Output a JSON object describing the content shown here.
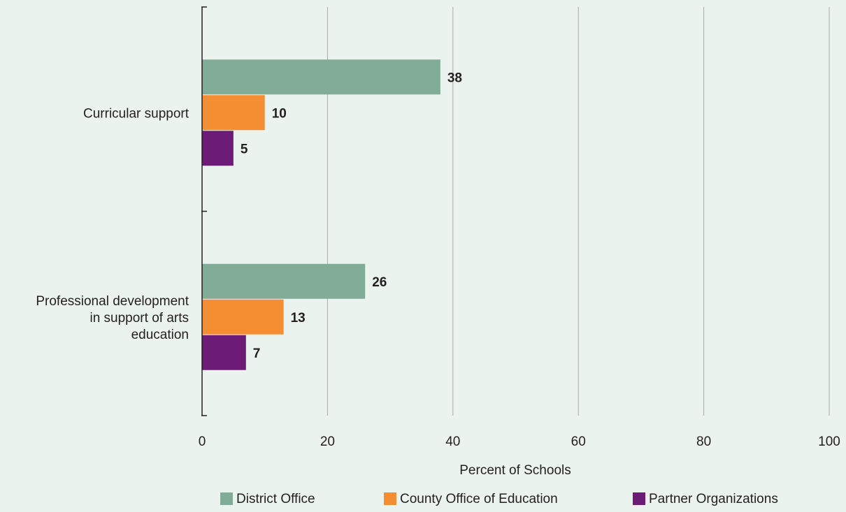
{
  "chart_data": {
    "type": "bar",
    "orientation": "horizontal",
    "categories": [
      [
        "Curricular support"
      ],
      [
        "Professional development",
        "in support of arts",
        "education"
      ]
    ],
    "series": [
      {
        "name": "District Office",
        "values": [
          38,
          26
        ],
        "color": "#80ac98"
      },
      {
        "name": "County Office of Education",
        "values": [
          10,
          13
        ],
        "color": "#f58d33"
      },
      {
        "name": "Partner Organizations",
        "values": [
          5,
          7
        ],
        "color": "#6c1b77"
      }
    ],
    "xlabel": "Percent of Schools",
    "xlim": [
      0,
      100
    ],
    "xticks": [
      0,
      20,
      40,
      60,
      80,
      100
    ],
    "grid": true,
    "legend_position": "bottom",
    "background_color": "#ebf3ef",
    "gridline_color": "#a9a9a9",
    "axis_color": "#231f20"
  }
}
